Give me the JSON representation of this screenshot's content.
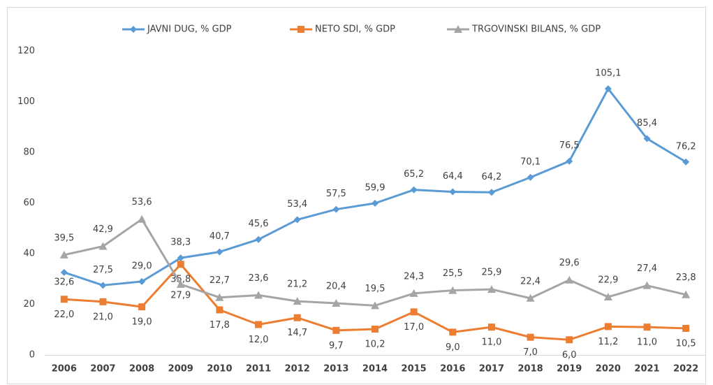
{
  "chart_data": {
    "type": "line",
    "categories": [
      "2006",
      "2007",
      "2008",
      "2009",
      "2010",
      "2011",
      "2012",
      "2013",
      "2014",
      "2015",
      "2016",
      "2017",
      "2018",
      "2019",
      "2020",
      "2021",
      "2022"
    ],
    "series": [
      {
        "name": "JAVNI DUG, % GDP",
        "color": "#5b9bd5",
        "marker": "diamond",
        "values": [
          32.6,
          27.5,
          29.0,
          38.3,
          40.7,
          45.6,
          53.4,
          57.5,
          59.9,
          65.2,
          64.4,
          64.2,
          70.1,
          76.5,
          105.1,
          85.4,
          76.2
        ],
        "value_labels": [
          "32,6",
          "27,5",
          "29,0",
          "38,3",
          "40,7",
          "45,6",
          "53,4",
          "57,5",
          "59,9",
          "65,2",
          "64,4",
          "64,2",
          "70,1",
          "76,5",
          "105,1",
          "85,4",
          "76,2"
        ]
      },
      {
        "name": "NETO SDI, % GDP",
        "color": "#ed7d31",
        "marker": "square",
        "values": [
          22.0,
          21.0,
          19.0,
          35.8,
          17.8,
          12.0,
          14.7,
          9.7,
          10.2,
          17.0,
          9.0,
          11.0,
          7.0,
          6.0,
          11.2,
          11.0,
          10.5
        ],
        "value_labels": [
          "22,0",
          "21,0",
          "19,0",
          "35,8",
          "17,8",
          "12,0",
          "14,7",
          "9,7",
          "10,2",
          "17,0",
          "9,0",
          "11,0",
          "7,0",
          "6,0",
          "11,2",
          "11,0",
          "10,5"
        ]
      },
      {
        "name": "TRGOVINSKI BILANS, % GDP",
        "color": "#a5a5a5",
        "marker": "triangle",
        "values": [
          39.5,
          42.9,
          53.6,
          27.9,
          22.7,
          23.6,
          21.2,
          20.4,
          19.5,
          24.3,
          25.5,
          25.9,
          22.4,
          29.6,
          22.9,
          27.4,
          23.8
        ],
        "value_labels": [
          "39,5",
          "42,9",
          "53,6",
          "27,9",
          "22,7",
          "23,6",
          "21,2",
          "20,4",
          "19,5",
          "24,3",
          "25,5",
          "25,9",
          "22,4",
          "29,6",
          "22,9",
          "27,4",
          "23,8"
        ]
      }
    ],
    "ylim": [
      0,
      120
    ],
    "yticks": [
      0,
      20,
      40,
      60,
      80,
      100,
      120
    ],
    "grid": false,
    "legend": "top"
  }
}
